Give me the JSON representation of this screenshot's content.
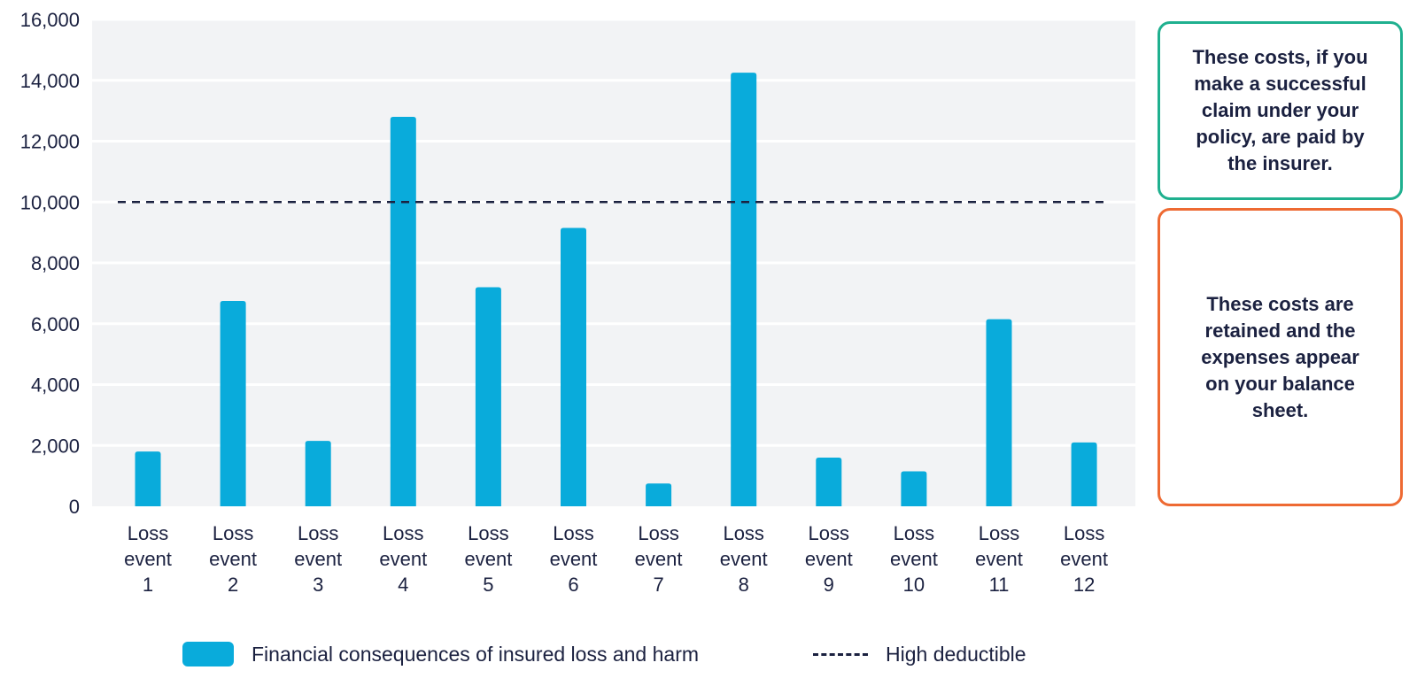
{
  "chart_data": {
    "type": "bar",
    "title": "",
    "xlabel": "",
    "ylabel": "",
    "ylim": [
      0,
      16000
    ],
    "yticks": [
      0,
      2000,
      4000,
      6000,
      8000,
      10000,
      12000,
      14000,
      16000
    ],
    "ytick_labels": [
      "0",
      "2,000",
      "4,000",
      "6,000",
      "8,000",
      "10,000",
      "12,000",
      "14,000",
      "16,000"
    ],
    "categories": [
      [
        "Loss",
        "event",
        "1"
      ],
      [
        "Loss",
        "event",
        "2"
      ],
      [
        "Loss",
        "event",
        "3"
      ],
      [
        "Loss",
        "event",
        "4"
      ],
      [
        "Loss",
        "event",
        "5"
      ],
      [
        "Loss",
        "event",
        "6"
      ],
      [
        "Loss",
        "event",
        "7"
      ],
      [
        "Loss",
        "event",
        "8"
      ],
      [
        "Loss",
        "event",
        "9"
      ],
      [
        "Loss",
        "event",
        "10"
      ],
      [
        "Loss",
        "event",
        "11"
      ],
      [
        "Loss",
        "event",
        "12"
      ]
    ],
    "series": [
      {
        "name": "Financial consequences of insured loss and harm",
        "color": "#09abdb",
        "values": [
          1800,
          6750,
          2150,
          12800,
          7200,
          9150,
          750,
          14250,
          1600,
          1150,
          6150,
          2100
        ]
      }
    ],
    "reference_line": {
      "name": "High deductible",
      "value": 10000,
      "style": "dashed",
      "color": "#1b2140"
    },
    "grid": true,
    "background_color": "#f2f3f5",
    "legend_position": "bottom"
  },
  "annotations": {
    "top_box": {
      "text": "These costs, if you make a successful claim under your policy, are paid by the insurer.",
      "border_color": "#1fb08f"
    },
    "bottom_box": {
      "text": "These costs are retained and the expenses appear on your balance sheet.",
      "border_color": "#ee6a33"
    }
  },
  "legend": {
    "bars_label": "Financial consequences of insured loss and harm",
    "line_label": "High deductible"
  }
}
